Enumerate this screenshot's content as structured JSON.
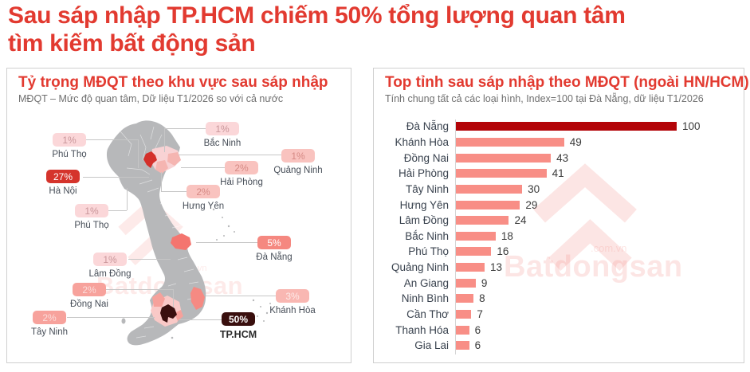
{
  "page_title": {
    "line1": "Sau sáp nhập TP.HCM chiếm 50% tổng lượng quan tâm",
    "line2": "tìm kiếm bất động sản"
  },
  "left_panel": {
    "title": "Tỷ trọng MĐQT theo khu vực sau sáp nhập",
    "subtitle": "MĐQT – Mức độ quan tâm, Dữ liệu T1/2026 so với cả nước",
    "badges": [
      {
        "value": "1%",
        "name": "Phú Thọ",
        "tone": "light"
      },
      {
        "value": "1%",
        "name": "Bắc Ninh",
        "tone": "light"
      },
      {
        "value": "1%",
        "name": "Quảng Ninh",
        "tone": "medium"
      },
      {
        "value": "2%",
        "name": "Hải Phòng",
        "tone": "medium"
      },
      {
        "value": "27%",
        "name": "Hà Nội",
        "tone": "red"
      },
      {
        "value": "2%",
        "name": "Hưng Yên",
        "tone": "medium"
      },
      {
        "value": "1%",
        "name": "Phú Thọ",
        "tone": "light"
      },
      {
        "value": "1%",
        "name": "Lâm Đồng",
        "tone": "light"
      },
      {
        "value": "5%",
        "name": "Đà Nẵng",
        "tone": "strong"
      },
      {
        "value": "2%",
        "name": "Đồng Nai",
        "tone": "salmon"
      },
      {
        "value": "3%",
        "name": "Khánh Hòa",
        "tone": "soft"
      },
      {
        "value": "2%",
        "name": "Tây Ninh",
        "tone": "salmon"
      },
      {
        "value": "50%",
        "name": "TP.HCM",
        "tone": "dark"
      }
    ]
  },
  "right_panel": {
    "title": "Top tỉnh sau sáp nhập theo MĐQT (ngoài HN/HCM)",
    "subtitle": "Tính chung tất cả các loại hình, Index=100 tại Đà Nẵng, dữ liệu T1/2026"
  },
  "chart_data": {
    "type": "bar",
    "orientation": "horizontal",
    "title": "Top tỉnh sau sáp nhập theo MĐQT (ngoài HN/HCM)",
    "categories": [
      "Đà Nẵng",
      "Khánh Hòa",
      "Đồng Nai",
      "Hải Phòng",
      "Tây Ninh",
      "Hưng Yên",
      "Lâm Đồng",
      "Bắc Ninh",
      "Phú Thọ",
      "Quảng Ninh",
      "An Giang",
      "Ninh Bình",
      "Cần Thơ",
      "Thanh Hóa",
      "Gia Lai"
    ],
    "values": [
      100,
      49,
      43,
      41,
      30,
      29,
      24,
      18,
      16,
      13,
      9,
      8,
      7,
      6,
      6
    ],
    "xlabel": "",
    "ylabel": "",
    "xlim": [
      0,
      100
    ],
    "grid": false,
    "legend": false,
    "bar_color": "#f88e86",
    "highlight_color": "#b30408",
    "highlight_index": 0
  },
  "watermark": {
    "brand": "Batdongsan",
    "domain": ".com.vn",
    "color": "#f4837d"
  },
  "colors": {
    "accent_red": "#e23a30",
    "map_gray": "#b7b8ba",
    "hanoi_red": "#d4302b",
    "hcm_dark": "#3a100f"
  }
}
